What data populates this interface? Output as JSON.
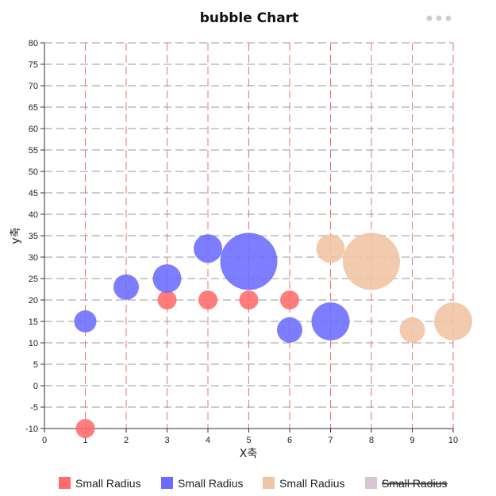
{
  "menu": {
    "icon": "more-dots-icon"
  },
  "chart_data": {
    "type": "bubble",
    "title": "bubble Chart",
    "xlabel": "X축",
    "ylabel": "y축",
    "xlim": [
      0,
      10
    ],
    "ylim": [
      -10,
      80
    ],
    "x_ticks": [
      0,
      1,
      2,
      3,
      4,
      5,
      6,
      7,
      8,
      9,
      10
    ],
    "y_ticks": [
      -10,
      -5,
      0,
      5,
      10,
      15,
      20,
      25,
      30,
      35,
      40,
      45,
      50,
      55,
      60,
      65,
      70,
      75,
      80
    ],
    "grid": {
      "x": "dashed red",
      "y": "dashed gray"
    },
    "legend_position": "bottom",
    "series": [
      {
        "name": "Small Radius",
        "color": "#ff6b6b",
        "hidden": false,
        "points": [
          {
            "x": 1,
            "y": -10,
            "r": 12
          },
          {
            "x": 3,
            "y": 20,
            "r": 12
          },
          {
            "x": 4,
            "y": 20,
            "r": 12
          },
          {
            "x": 5,
            "y": 20,
            "r": 12
          },
          {
            "x": 6,
            "y": 20,
            "r": 12
          }
        ]
      },
      {
        "name": "Small Radius",
        "color": "#6b6bff",
        "hidden": false,
        "points": [
          {
            "x": 1,
            "y": 15,
            "r": 14
          },
          {
            "x": 2,
            "y": 23,
            "r": 16
          },
          {
            "x": 3,
            "y": 25,
            "r": 18
          },
          {
            "x": 4,
            "y": 32,
            "r": 18
          },
          {
            "x": 5,
            "y": 29,
            "r": 36
          },
          {
            "x": 6,
            "y": 13,
            "r": 16
          },
          {
            "x": 7,
            "y": 15,
            "r": 24
          }
        ]
      },
      {
        "name": "Small Radius",
        "color": "#f0c4a4",
        "hidden": false,
        "points": [
          {
            "x": 7,
            "y": 32,
            "r": 18
          },
          {
            "x": 8,
            "y": 29,
            "r": 36
          },
          {
            "x": 9,
            "y": 13,
            "r": 16
          },
          {
            "x": 10,
            "y": 15,
            "r": 24
          }
        ]
      },
      {
        "name": "Small Radius",
        "color": "#d8c4d4",
        "hidden": true,
        "points": []
      }
    ]
  }
}
